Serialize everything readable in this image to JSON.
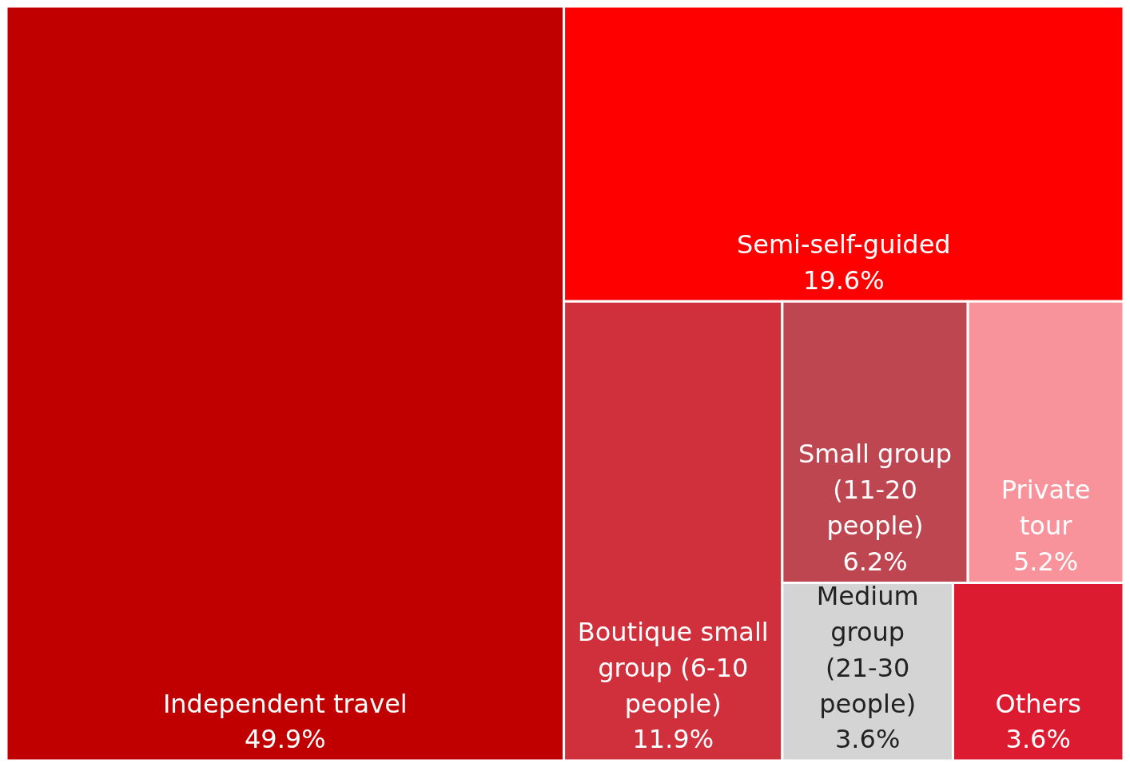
{
  "chart_data": {
    "type": "other",
    "categories": [
      "Independent travel",
      "Semi-self-guided",
      "Boutique small group (6-10 people)",
      "Small group (11-20 people)",
      "Private tour",
      "Medium group (21-30 people)",
      "Others"
    ],
    "values": [
      49.9,
      19.6,
      11.9,
      6.2,
      5.2,
      3.6,
      3.6
    ],
    "value_labels": [
      "49.9%",
      "19.6%",
      "11.9%",
      "6.2%",
      "5.2%",
      "3.6%",
      "3.6%"
    ],
    "colors": [
      "#c00000",
      "#ff0000",
      "#d0303c",
      "#be4650",
      "#f8939b",
      "#d4d4d4",
      "#dc1a30"
    ]
  }
}
